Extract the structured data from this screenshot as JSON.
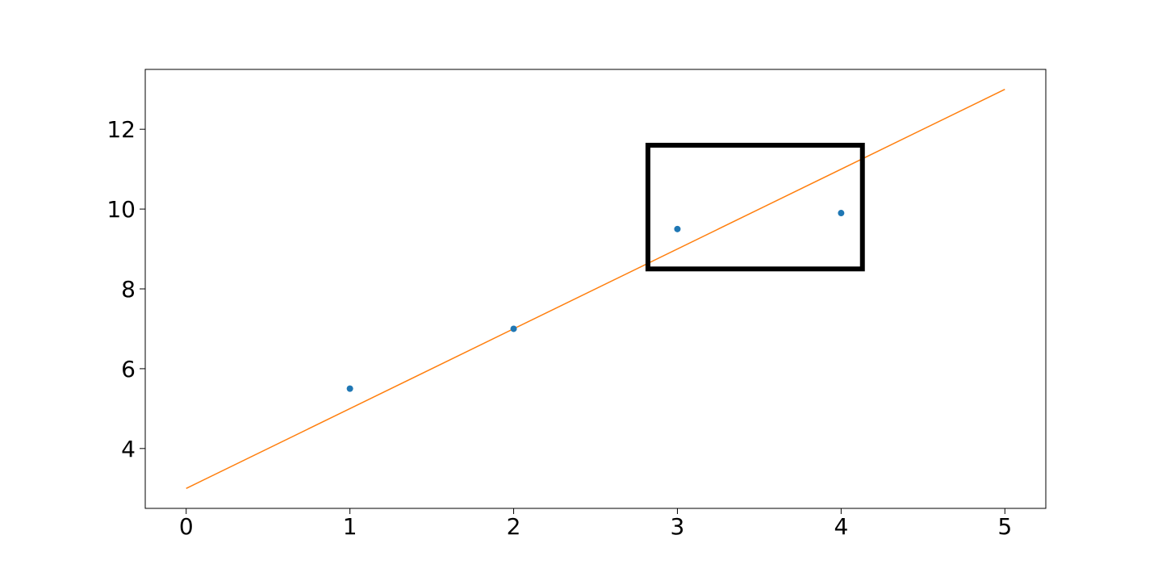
{
  "chart_data": {
    "type": "scatter",
    "title": "",
    "xlabel": "",
    "ylabel": "",
    "xlim": [
      -0.25,
      5.25
    ],
    "ylim": [
      2.5,
      13.5
    ],
    "grid": false,
    "legend": "none",
    "x_ticks": [
      0,
      1,
      2,
      3,
      4,
      5
    ],
    "x_tick_labels": [
      "0",
      "1",
      "2",
      "3",
      "4",
      "5"
    ],
    "y_ticks": [
      4,
      6,
      8,
      10,
      12
    ],
    "y_tick_labels": [
      "4",
      "6",
      "8",
      "10",
      "12"
    ],
    "series": [
      {
        "kind": "scatter",
        "color": "#1f77b4",
        "points": [
          {
            "x": 1,
            "y": 5.5
          },
          {
            "x": 2,
            "y": 7.0
          },
          {
            "x": 3,
            "y": 9.5
          },
          {
            "x": 4,
            "y": 9.9
          }
        ]
      },
      {
        "kind": "line",
        "color": "#ff7f0e",
        "points": [
          {
            "x": 0,
            "y": 3.0
          },
          {
            "x": 5,
            "y": 13.0
          }
        ]
      }
    ],
    "annotations": [
      {
        "kind": "rectangle",
        "color": "#000000",
        "x_range": [
          2.82,
          4.13
        ],
        "y_range": [
          8.5,
          11.6
        ]
      }
    ]
  }
}
